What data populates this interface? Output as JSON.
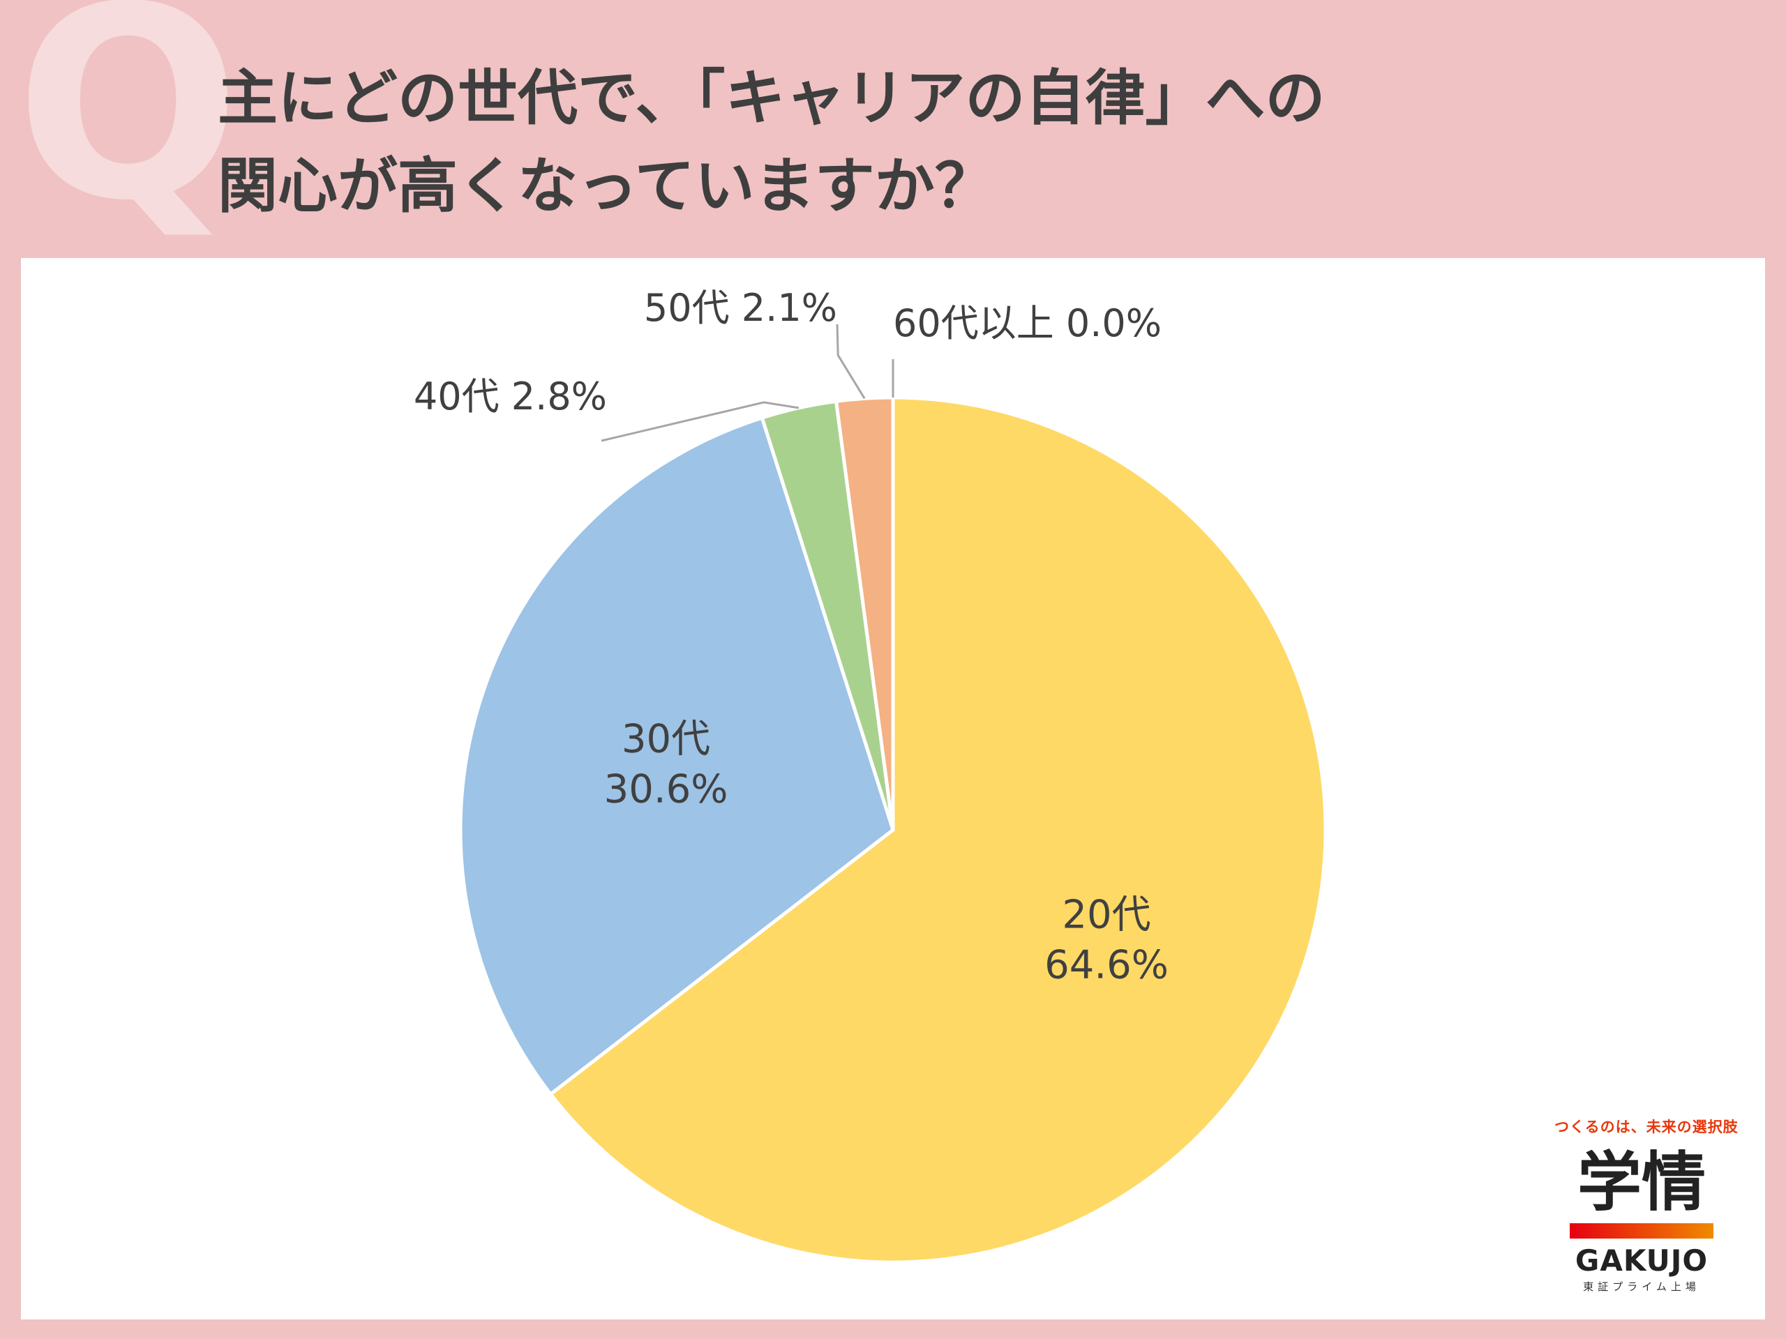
{
  "question": {
    "mark": "Q",
    "title_line1": "主にどの世代で、「キャリアの自律」への",
    "title_line2": "関心が高くなっていますか？"
  },
  "chart_data": {
    "type": "pie",
    "title": "主にどの世代で、「キャリアの自律」への関心が高くなっていますか？",
    "unit": "%",
    "slices": [
      {
        "label": "20代",
        "value": 64.6,
        "color": "#fed966"
      },
      {
        "label": "30代",
        "value": 30.6,
        "color": "#9dc3e6"
      },
      {
        "label": "40代",
        "value": 2.8,
        "color": "#a9d18e"
      },
      {
        "label": "50代",
        "value": 2.1,
        "color": "#f4b183"
      },
      {
        "label": "60代以上",
        "value": 0.0,
        "color": "#bfbfbf"
      }
    ]
  },
  "logo": {
    "tagline": "つくるのは、未来の選択肢",
    "kanji": "学情",
    "english": "GAKUJO",
    "sub": "東証プライム上場"
  }
}
